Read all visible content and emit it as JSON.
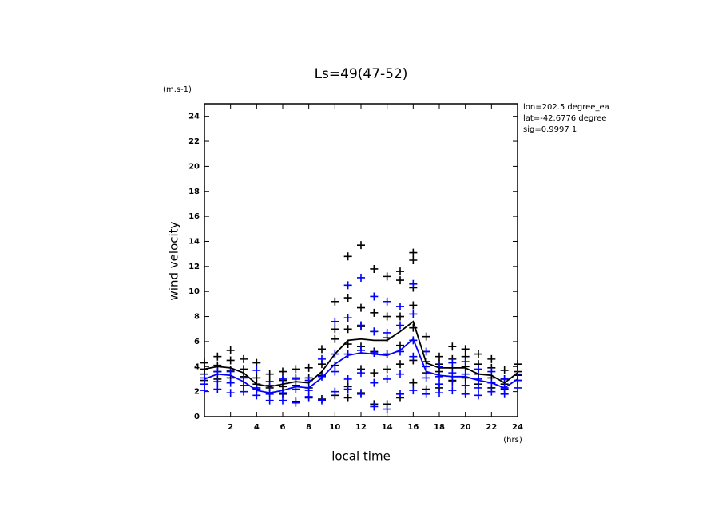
{
  "chart_data": {
    "type": "line",
    "title": "Ls=49(47-52)",
    "y_unit": "(m.s-1)",
    "x_unit": "(hrs)",
    "ylabel": "wind velocity",
    "xlabel": "local time",
    "annotations": [
      "lon=202.5 degree_ea",
      "lat=-42.6776 degree",
      "sig=0.9997 1"
    ],
    "xlim": [
      0,
      24
    ],
    "xticks": [
      2,
      4,
      6,
      8,
      10,
      12,
      14,
      16,
      18,
      20,
      22,
      24
    ],
    "ylim": [
      0,
      25
    ],
    "yticks": [
      0,
      2,
      4,
      6,
      8,
      10,
      12,
      14,
      16,
      18,
      20,
      22,
      24
    ],
    "series": [
      {
        "color": "#000000",
        "style": "cross",
        "x": [
          0,
          0,
          0,
          0,
          1,
          1,
          1,
          1,
          2,
          2,
          2,
          2,
          3,
          3,
          3,
          3,
          4,
          4,
          4,
          4,
          5,
          5,
          5,
          5,
          6,
          6,
          6,
          6,
          7,
          7,
          7,
          7,
          8,
          8,
          8,
          8,
          9,
          9,
          9,
          9,
          10,
          10,
          10,
          10,
          10,
          11,
          11,
          11,
          11,
          11,
          11,
          12,
          12,
          12,
          12,
          12,
          12,
          13,
          13,
          13,
          13,
          13,
          13,
          14,
          14,
          14,
          14,
          14,
          14,
          15,
          15,
          15,
          15,
          15,
          15,
          16,
          16,
          16,
          16,
          16,
          16,
          16,
          17,
          17,
          17,
          17,
          17,
          18,
          18,
          18,
          18,
          19,
          19,
          19,
          19,
          20,
          20,
          20,
          20,
          21,
          21,
          21,
          21,
          22,
          22,
          22,
          22,
          23,
          23,
          23,
          23,
          24,
          24,
          24,
          24
        ],
        "values": [
          4.3,
          3.8,
          3.4,
          2.9,
          4.8,
          4.1,
          3.6,
          3.0,
          5.3,
          4.5,
          3.7,
          3.1,
          4.6,
          3.8,
          3.2,
          2.5,
          4.3,
          3.1,
          2.6,
          2.2,
          3.4,
          2.8,
          2.3,
          1.9,
          3.6,
          2.9,
          2.4,
          1.8,
          3.8,
          3.1,
          2.5,
          1.2,
          3.9,
          3.1,
          2.3,
          1.5,
          5.4,
          4.2,
          3.3,
          1.4,
          9.2,
          7.0,
          6.2,
          4.1,
          1.7,
          12.8,
          9.5,
          7.0,
          5.8,
          2.4,
          1.5,
          13.7,
          8.7,
          7.2,
          5.6,
          3.8,
          1.9,
          11.8,
          8.3,
          6.8,
          5.2,
          3.5,
          1.0,
          11.2,
          8.0,
          6.3,
          5.0,
          3.8,
          1.0,
          11.6,
          10.9,
          8.0,
          5.7,
          4.2,
          1.5,
          13.1,
          12.5,
          10.3,
          8.9,
          7.1,
          4.5,
          2.7,
          6.4,
          5.2,
          4.4,
          3.5,
          2.2,
          4.8,
          4.2,
          3.6,
          2.3,
          5.6,
          4.6,
          3.9,
          2.9,
          5.4,
          4.8,
          4.0,
          3.1,
          5.0,
          4.2,
          3.4,
          2.6,
          4.6,
          3.9,
          3.1,
          2.3,
          3.7,
          3.0,
          2.6,
          2.2,
          4.2,
          3.6,
          3.3,
          2.9
        ]
      },
      {
        "color": "#0000ff",
        "style": "cross",
        "x": [
          0,
          0,
          0,
          1,
          1,
          1,
          2,
          2,
          2,
          3,
          3,
          3,
          4,
          4,
          4,
          5,
          5,
          5,
          6,
          6,
          6,
          7,
          7,
          7,
          8,
          8,
          8,
          9,
          9,
          9,
          10,
          10,
          10,
          10,
          11,
          11,
          11,
          11,
          11,
          12,
          12,
          12,
          12,
          12,
          13,
          13,
          13,
          13,
          13,
          14,
          14,
          14,
          14,
          14,
          15,
          15,
          15,
          15,
          15,
          16,
          16,
          16,
          16,
          16,
          17,
          17,
          17,
          17,
          18,
          18,
          18,
          18,
          19,
          19,
          19,
          19,
          20,
          20,
          20,
          20,
          21,
          21,
          21,
          21,
          22,
          22,
          22,
          23,
          23,
          23,
          24,
          24,
          24
        ],
        "values": [
          3.1,
          2.6,
          2.1,
          3.6,
          2.8,
          2.2,
          3.6,
          2.7,
          1.9,
          3.1,
          2.5,
          2.0,
          3.7,
          2.3,
          1.7,
          2.5,
          1.8,
          1.3,
          3.0,
          1.9,
          1.3,
          3.0,
          2.2,
          1.1,
          2.9,
          2.1,
          1.6,
          4.6,
          3.2,
          1.3,
          7.6,
          5.0,
          3.6,
          2.0,
          10.5,
          7.9,
          5.0,
          3.0,
          2.2,
          11.1,
          7.3,
          5.3,
          3.5,
          1.8,
          9.6,
          6.8,
          5.1,
          2.7,
          0.8,
          9.2,
          6.7,
          5.0,
          3.0,
          0.6,
          8.8,
          7.3,
          5.2,
          3.4,
          1.8,
          10.6,
          8.2,
          6.1,
          4.8,
          2.1,
          5.2,
          4.0,
          3.1,
          1.8,
          4.0,
          3.2,
          2.6,
          1.9,
          4.3,
          3.5,
          2.8,
          2.1,
          4.4,
          3.4,
          2.5,
          1.8,
          3.8,
          3.0,
          2.3,
          1.7,
          3.6,
          2.7,
          2.0,
          3.0,
          2.3,
          1.8,
          3.4,
          2.9,
          2.3
        ]
      },
      {
        "color": "#000000",
        "style": "line",
        "x": [
          0,
          1,
          2,
          3,
          4,
          5,
          6,
          7,
          8,
          9,
          10,
          11,
          12,
          13,
          14,
          15,
          16,
          17,
          18,
          19,
          20,
          21,
          22,
          23,
          24
        ],
        "values": [
          3.8,
          4.0,
          3.9,
          3.5,
          2.6,
          2.4,
          2.6,
          2.8,
          2.7,
          3.6,
          5.0,
          6.1,
          6.2,
          6.1,
          6.1,
          6.8,
          7.6,
          4.3,
          3.9,
          3.9,
          3.9,
          3.4,
          3.3,
          2.7,
          3.5
        ]
      },
      {
        "color": "#0000ff",
        "style": "line",
        "x": [
          0,
          1,
          2,
          3,
          4,
          5,
          6,
          7,
          8,
          9,
          10,
          11,
          12,
          13,
          14,
          15,
          16,
          17,
          18,
          19,
          20,
          21,
          22,
          23,
          24
        ],
        "values": [
          3.0,
          3.4,
          3.3,
          2.8,
          2.1,
          1.9,
          2.1,
          2.4,
          2.3,
          3.1,
          4.2,
          4.9,
          5.1,
          5.0,
          4.9,
          5.3,
          6.2,
          3.6,
          3.3,
          3.2,
          3.2,
          2.9,
          2.7,
          2.3,
          3.0
        ]
      }
    ]
  }
}
